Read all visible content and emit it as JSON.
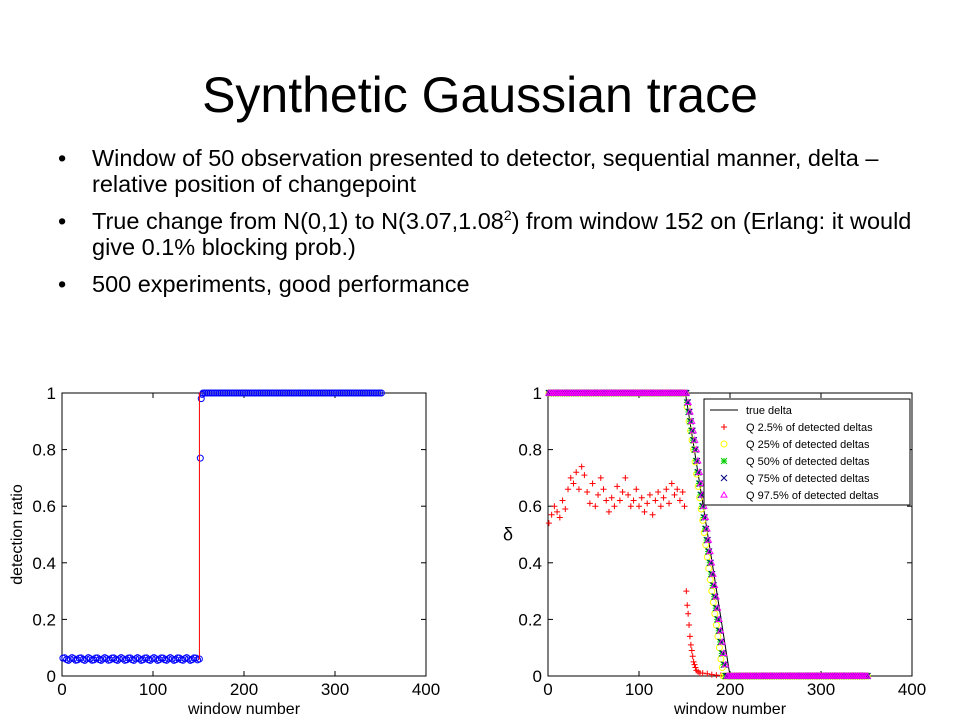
{
  "slide": {
    "title": "Synthetic Gaussian trace",
    "bullets": [
      {
        "text": "Window of 50 observation presented to detector, sequential manner, delta – relative position of changepoint"
      },
      {
        "pre": "True change from N(0,1) to N(3.07,1.08",
        "sup": "2",
        "post": ") from window 152 on (Erlang: it would give 0.1% blocking prob.)"
      },
      {
        "text": "500 experiments, good performance"
      }
    ],
    "bullet_glyph": "•"
  },
  "chart_data": [
    {
      "type": "line",
      "xlabel": "window number",
      "ylabel": "detection ratio",
      "xlim": [
        0,
        400
      ],
      "ylim": [
        0,
        1
      ],
      "xticks": [
        0,
        100,
        200,
        300,
        400
      ],
      "yticks": [
        0,
        0.2,
        0.4,
        0.6,
        0.8,
        1
      ],
      "grid": false,
      "series": [
        {
          "kind": "marker-circle",
          "color": "#0000ff",
          "segments": [
            {
              "x_from": 1,
              "x_to": 150,
              "y": 0.06
            },
            {
              "x_from": 155,
              "x_to": 351,
              "y": 1.0
            }
          ],
          "points": [
            [
              151,
              0.06
            ],
            [
              152,
              0.77
            ],
            [
              153,
              0.98
            ],
            [
              154,
              0.995
            ]
          ]
        },
        {
          "kind": "line",
          "color": "#ff0000",
          "points": [
            [
              150,
              0.06
            ],
            [
              151,
              0.06
            ],
            [
              151,
              1.0
            ],
            [
              152,
              1.0
            ]
          ]
        }
      ]
    },
    {
      "type": "scatter",
      "xlabel": "window number",
      "ylabel": "δ",
      "xlim": [
        0,
        400
      ],
      "ylim": [
        0,
        1
      ],
      "xticks": [
        0,
        100,
        200,
        300,
        400
      ],
      "yticks": [
        0,
        0.2,
        0.4,
        0.6,
        0.8,
        1
      ],
      "grid": false,
      "legend_position": "top-right",
      "series": [
        {
          "name": "true delta",
          "marker": "line",
          "color": "#000000",
          "points": [
            [
              1,
              1
            ],
            [
              151,
              1
            ],
            [
              200,
              0
            ],
            [
              351,
              0
            ]
          ]
        },
        {
          "name": "Q 2.5% of detected deltas",
          "marker": "plus",
          "color": "#ff0000",
          "points": [
            [
              1,
              0.54
            ],
            [
              4,
              0.57
            ],
            [
              7,
              0.6
            ],
            [
              10,
              0.58
            ],
            [
              13,
              0.56
            ],
            [
              16,
              0.62
            ],
            [
              19,
              0.59
            ],
            [
              22,
              0.66
            ],
            [
              25,
              0.7
            ],
            [
              28,
              0.68
            ],
            [
              31,
              0.72
            ],
            [
              34,
              0.66
            ],
            [
              37,
              0.74
            ],
            [
              40,
              0.71
            ],
            [
              43,
              0.65
            ],
            [
              46,
              0.61
            ],
            [
              49,
              0.68
            ],
            [
              52,
              0.6
            ],
            [
              55,
              0.64
            ],
            [
              58,
              0.7
            ],
            [
              61,
              0.66
            ],
            [
              64,
              0.62
            ],
            [
              67,
              0.58
            ],
            [
              70,
              0.63
            ],
            [
              73,
              0.6
            ],
            [
              76,
              0.67
            ],
            [
              79,
              0.62
            ],
            [
              82,
              0.65
            ],
            [
              85,
              0.7
            ],
            [
              88,
              0.64
            ],
            [
              91,
              0.6
            ],
            [
              94,
              0.62
            ],
            [
              97,
              0.66
            ],
            [
              100,
              0.6
            ],
            [
              103,
              0.63
            ],
            [
              106,
              0.58
            ],
            [
              109,
              0.61
            ],
            [
              112,
              0.64
            ],
            [
              115,
              0.57
            ],
            [
              118,
              0.62
            ],
            [
              121,
              0.65
            ],
            [
              124,
              0.6
            ],
            [
              127,
              0.63
            ],
            [
              130,
              0.66
            ],
            [
              133,
              0.61
            ],
            [
              136,
              0.68
            ],
            [
              139,
              0.64
            ],
            [
              142,
              0.66
            ],
            [
              145,
              0.62
            ],
            [
              148,
              0.65
            ],
            [
              150,
              0.6
            ],
            [
              152,
              0.3
            ],
            [
              153,
              0.25
            ],
            [
              154,
              0.22
            ],
            [
              155,
              0.18
            ],
            [
              156,
              0.14
            ],
            [
              157,
              0.11
            ],
            [
              158,
              0.09
            ],
            [
              159,
              0.07
            ],
            [
              160,
              0.05
            ],
            [
              161,
              0.04
            ],
            [
              162,
              0.03
            ],
            [
              163,
              0.02
            ],
            [
              165,
              0.015
            ],
            [
              167,
              0.01
            ],
            [
              170,
              0.01
            ],
            [
              175,
              0.008
            ],
            [
              180,
              0.005
            ],
            [
              185,
              0.003
            ],
            [
              190,
              0.002
            ],
            [
              200,
              0
            ],
            [
              260,
              0
            ],
            [
              351,
              0
            ]
          ]
        },
        {
          "name": "Q 25% of detected deltas",
          "marker": "circle",
          "color": "#ffff00",
          "points": [
            [
              1,
              1
            ],
            [
              151,
              1
            ],
            [
              155,
              0.9
            ],
            [
              160,
              0.8
            ],
            [
              165,
              0.67
            ],
            [
              170,
              0.55
            ],
            [
              175,
              0.42
            ],
            [
              180,
              0.3
            ],
            [
              185,
              0.18
            ],
            [
              190,
              0.06
            ],
            [
              193,
              0
            ],
            [
              260,
              0
            ],
            [
              351,
              0
            ]
          ]
        },
        {
          "name": "Q 50% of detected deltas",
          "marker": "star",
          "color": "#00cc00",
          "points": [
            [
              1,
              1
            ],
            [
              151,
              1
            ],
            [
              156,
              0.9
            ],
            [
              161,
              0.8
            ],
            [
              166,
              0.68
            ],
            [
              171,
              0.56
            ],
            [
              176,
              0.44
            ],
            [
              181,
              0.32
            ],
            [
              186,
              0.2
            ],
            [
              191,
              0.08
            ],
            [
              195,
              0
            ],
            [
              260,
              0
            ],
            [
              351,
              0
            ]
          ]
        },
        {
          "name": "Q 75% of detected deltas",
          "marker": "x",
          "color": "#000080",
          "points": [
            [
              1,
              1
            ],
            [
              152,
              1
            ],
            [
              157,
              0.9
            ],
            [
              162,
              0.8
            ],
            [
              167,
              0.68
            ],
            [
              172,
              0.56
            ],
            [
              177,
              0.44
            ],
            [
              182,
              0.32
            ],
            [
              187,
              0.2
            ],
            [
              192,
              0.08
            ],
            [
              196,
              0
            ],
            [
              260,
              0
            ],
            [
              351,
              0
            ]
          ]
        },
        {
          "name": "Q 97.5% of detected deltas",
          "marker": "triangle",
          "color": "#ff00ff",
          "points": [
            [
              1,
              1
            ],
            [
              152,
              1
            ],
            [
              158,
              0.9
            ],
            [
              163,
              0.8
            ],
            [
              168,
              0.68
            ],
            [
              173,
              0.56
            ],
            [
              178,
              0.44
            ],
            [
              183,
              0.32
            ],
            [
              188,
              0.2
            ],
            [
              193,
              0.08
            ],
            [
              197,
              0
            ],
            [
              260,
              0
            ],
            [
              351,
              0
            ]
          ]
        }
      ]
    }
  ]
}
